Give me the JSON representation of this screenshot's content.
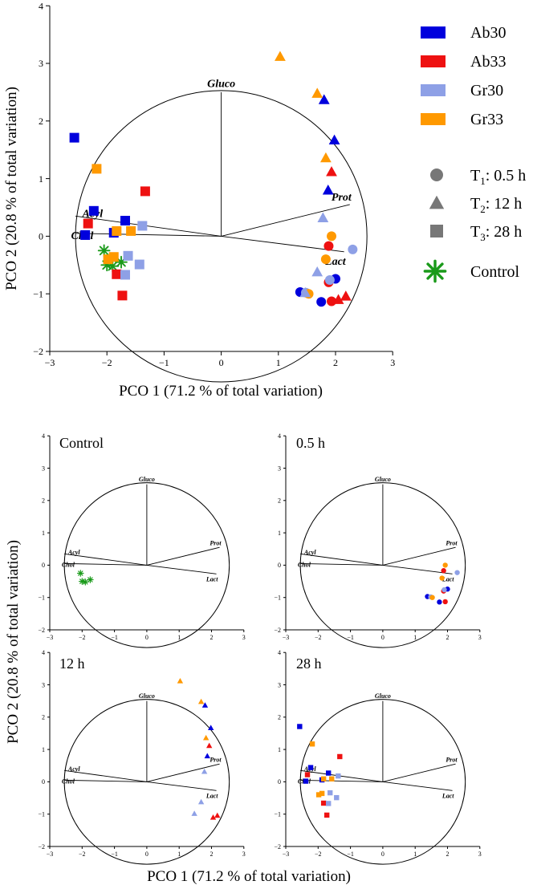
{
  "chart_data": {
    "type": "scatter",
    "title": "",
    "xlabel": "PCO 1 (71.2 % of total variation)",
    "ylabel": "PCO 2 (20.8 % of total variation)",
    "xlim": [
      -3,
      3
    ],
    "ylim": [
      -2,
      4
    ],
    "xticks": [
      "−3",
      "−2",
      "−1",
      "0",
      "1",
      "2",
      "3"
    ],
    "yticks": [
      "−2",
      "−1",
      "0",
      "1",
      "2",
      "3",
      "4"
    ],
    "colors": {
      "Ab30": "#0000dd",
      "Ab33": "#ee1111",
      "Gr30": "#8ea0e6",
      "Gr33": "#ff9900",
      "Control": "#1a9a1a"
    },
    "legend": {
      "groups": [
        {
          "key": "Ab30",
          "label": "Ab30"
        },
        {
          "key": "Ab33",
          "label": "Ab33"
        },
        {
          "key": "Gr30",
          "label": "Gr30"
        },
        {
          "key": "Gr33",
          "label": "Gr33"
        }
      ],
      "times": [
        {
          "shape": "circle",
          "prefix": "T",
          "sub": "1",
          "suffix": ": 0.5 h"
        },
        {
          "shape": "triangle",
          "prefix": "T",
          "sub": "2",
          "suffix": ": 12 h"
        },
        {
          "shape": "square",
          "prefix": "T",
          "sub": "3",
          "suffix": ": 28 h"
        }
      ],
      "control_label": "Control"
    },
    "vectors": [
      {
        "label": "Gluco",
        "x": 0,
        "y": 2.5
      },
      {
        "label": "Prot",
        "x": 2.25,
        "y": 0.55
      },
      {
        "label": "Lact",
        "x": 2.15,
        "y": -0.27
      },
      {
        "label": "Acyl",
        "x": -2.55,
        "y": 0.35
      },
      {
        "label": "Chol",
        "x": -2.55,
        "y": 0.05
      }
    ],
    "circle_radius": 2.55,
    "points": [
      {
        "group": "Control",
        "shape": "star",
        "x": -2.05,
        "y": -0.25
      },
      {
        "group": "Control",
        "shape": "star",
        "x": -2.0,
        "y": -0.5
      },
      {
        "group": "Control",
        "shape": "star",
        "x": -1.9,
        "y": -0.52
      },
      {
        "group": "Control",
        "shape": "star",
        "x": -1.75,
        "y": -0.45
      },
      {
        "group": "Ab30",
        "shape": "circle",
        "x": 1.38,
        "y": -0.97
      },
      {
        "group": "Ab30",
        "shape": "circle",
        "x": 1.75,
        "y": -1.14
      },
      {
        "group": "Ab30",
        "shape": "circle",
        "x": 2.0,
        "y": -0.74
      },
      {
        "group": "Ab33",
        "shape": "circle",
        "x": 1.88,
        "y": -0.17
      },
      {
        "group": "Ab33",
        "shape": "circle",
        "x": 1.88,
        "y": -0.8
      },
      {
        "group": "Ab33",
        "shape": "circle",
        "x": 1.93,
        "y": -1.13
      },
      {
        "group": "Gr30",
        "shape": "circle",
        "x": 1.48,
        "y": -0.98
      },
      {
        "group": "Gr30",
        "shape": "circle",
        "x": 1.9,
        "y": -0.76
      },
      {
        "group": "Gr30",
        "shape": "circle",
        "x": 2.3,
        "y": -0.23
      },
      {
        "group": "Gr33",
        "shape": "circle",
        "x": 1.53,
        "y": -1.0
      },
      {
        "group": "Gr33",
        "shape": "circle",
        "x": 1.83,
        "y": -0.4
      },
      {
        "group": "Gr33",
        "shape": "circle",
        "x": 1.93,
        "y": 0.0
      },
      {
        "group": "Ab30",
        "shape": "triangle",
        "x": 1.8,
        "y": 2.37
      },
      {
        "group": "Ab30",
        "shape": "triangle",
        "x": 1.98,
        "y": 1.67
      },
      {
        "group": "Ab30",
        "shape": "triangle",
        "x": 1.87,
        "y": 0.8
      },
      {
        "group": "Ab33",
        "shape": "triangle",
        "x": 1.93,
        "y": 1.12
      },
      {
        "group": "Ab33",
        "shape": "triangle",
        "x": 2.05,
        "y": -1.1
      },
      {
        "group": "Ab33",
        "shape": "triangle",
        "x": 2.18,
        "y": -1.04
      },
      {
        "group": "Gr30",
        "shape": "triangle",
        "x": 1.78,
        "y": 0.32
      },
      {
        "group": "Gr30",
        "shape": "triangle",
        "x": 1.68,
        "y": -0.62
      },
      {
        "group": "Gr30",
        "shape": "triangle",
        "x": 1.47,
        "y": -0.98
      },
      {
        "group": "Gr33",
        "shape": "triangle",
        "x": 1.03,
        "y": 3.12
      },
      {
        "group": "Gr33",
        "shape": "triangle",
        "x": 1.68,
        "y": 2.48
      },
      {
        "group": "Gr33",
        "shape": "triangle",
        "x": 1.83,
        "y": 1.36
      },
      {
        "group": "Ab30",
        "shape": "square",
        "x": -2.57,
        "y": 1.71
      },
      {
        "group": "Ab30",
        "shape": "square",
        "x": -2.23,
        "y": 0.44
      },
      {
        "group": "Ab30",
        "shape": "square",
        "x": -2.38,
        "y": 0.02
      },
      {
        "group": "Ab30",
        "shape": "square",
        "x": -1.88,
        "y": 0.06
      },
      {
        "group": "Ab30",
        "shape": "square",
        "x": -1.68,
        "y": 0.27
      },
      {
        "group": "Ab33",
        "shape": "square",
        "x": -1.33,
        "y": 0.78
      },
      {
        "group": "Ab33",
        "shape": "square",
        "x": -2.33,
        "y": 0.22
      },
      {
        "group": "Ab33",
        "shape": "square",
        "x": -1.83,
        "y": -0.66
      },
      {
        "group": "Ab33",
        "shape": "square",
        "x": -1.73,
        "y": -1.03
      },
      {
        "group": "Gr30",
        "shape": "square",
        "x": -1.38,
        "y": 0.18
      },
      {
        "group": "Gr30",
        "shape": "square",
        "x": -1.63,
        "y": -0.34
      },
      {
        "group": "Gr30",
        "shape": "square",
        "x": -1.43,
        "y": -0.49
      },
      {
        "group": "Gr30",
        "shape": "square",
        "x": -1.68,
        "y": -0.67
      },
      {
        "group": "Gr33",
        "shape": "square",
        "x": -2.18,
        "y": 1.17
      },
      {
        "group": "Gr33",
        "shape": "square",
        "x": -1.83,
        "y": 0.09
      },
      {
        "group": "Gr33",
        "shape": "square",
        "x": -1.58,
        "y": 0.09
      },
      {
        "group": "Gr33",
        "shape": "square",
        "x": -1.88,
        "y": -0.36
      },
      {
        "group": "Gr33",
        "shape": "square",
        "x": -1.98,
        "y": -0.4
      }
    ],
    "panels": [
      {
        "label": "Control",
        "shape": "star"
      },
      {
        "label": "0.5 h",
        "shape": "circle"
      },
      {
        "label": "12 h",
        "shape": "triangle"
      },
      {
        "label": "28 h",
        "shape": "square"
      }
    ]
  }
}
